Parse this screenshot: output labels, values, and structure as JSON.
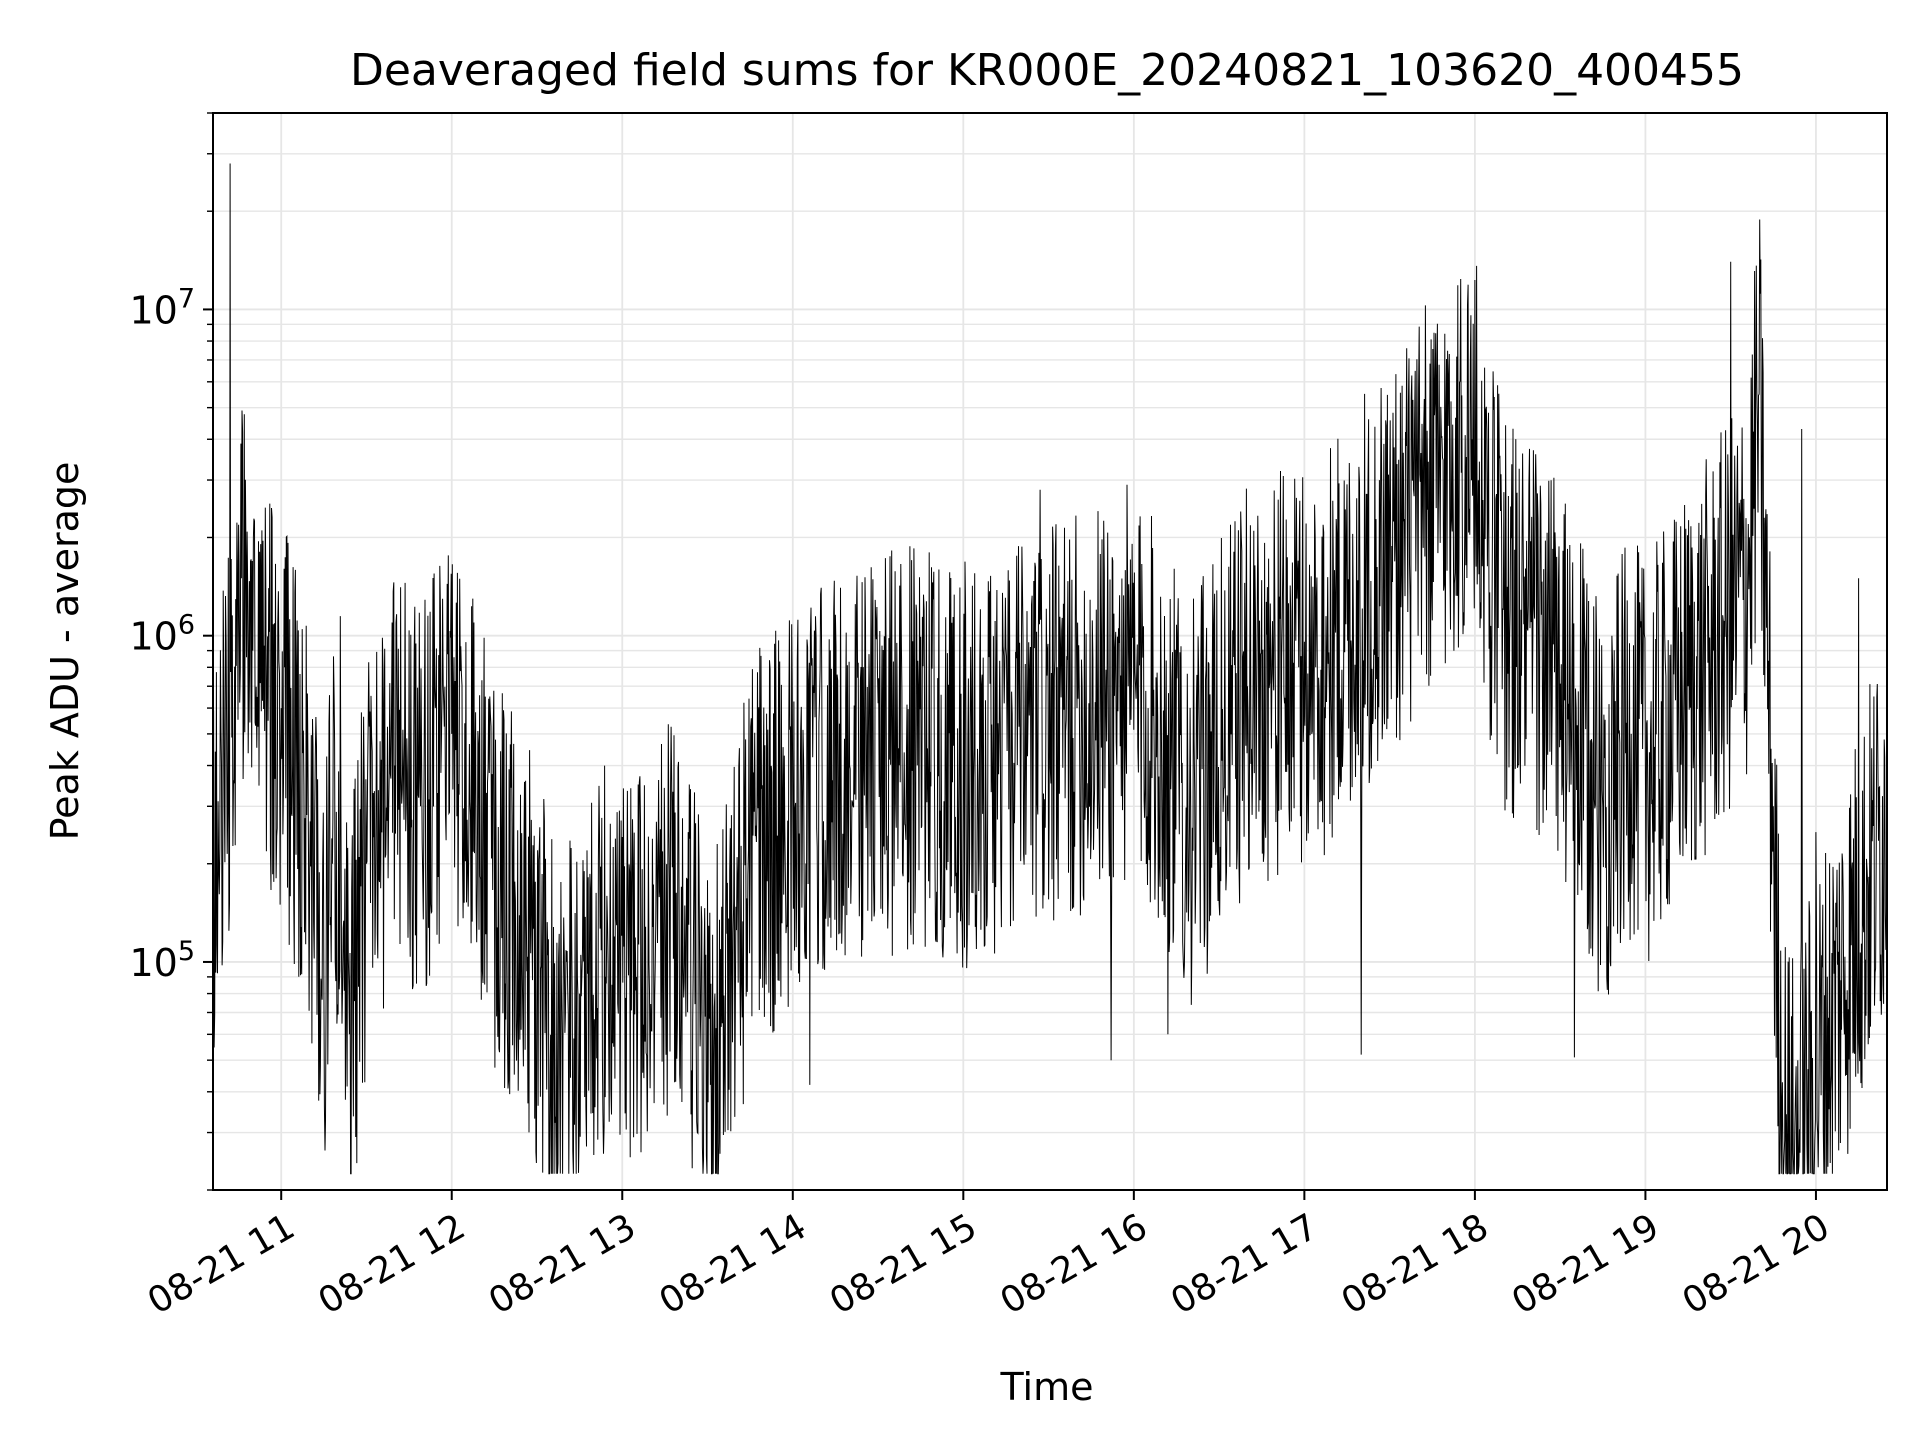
{
  "chart_data": {
    "type": "line",
    "title": "Deaveraged field sums for KR000E_20240821_103620_400455",
    "xlabel": "Time",
    "ylabel": "Peak ADU - average",
    "yscale": "log",
    "ylim": [
      20000,
      40000000
    ],
    "xlim": [
      "08-21 10:36",
      "08-21 20:25"
    ],
    "grid": true,
    "line_color": "#000000",
    "grid_color": "#e6e6e6",
    "x_ticks": [
      "08-21 11",
      "08-21 12",
      "08-21 13",
      "08-21 14",
      "08-21 15",
      "08-21 16",
      "08-21 17",
      "08-21 18",
      "08-21 19",
      "08-21 20"
    ],
    "y_ticks": [
      {
        "value": 100000,
        "base": "10",
        "exp": "5"
      },
      {
        "value": 1000000,
        "base": "10",
        "exp": "6"
      },
      {
        "value": 10000000,
        "base": "10",
        "exp": "7"
      }
    ],
    "series": [
      {
        "x": [
          "08-21 10:36",
          "08-21 10:39",
          "08-21 10:40",
          "08-21 10:42",
          "08-21 10:46",
          "08-21 10:50",
          "08-21 10:55",
          "08-21 11:00",
          "08-21 11:04",
          "08-21 11:08",
          "08-21 11:15",
          "08-21 11:18",
          "08-21 11:21",
          "08-21 11:24",
          "08-21 11:30",
          "08-21 11:40",
          "08-21 11:49",
          "08-21 12:00",
          "08-21 12:15",
          "08-21 12:30",
          "08-21 12:38",
          "08-21 12:45",
          "08-21 12:55",
          "08-21 13:05",
          "08-21 13:20",
          "08-21 13:31",
          "08-21 13:45",
          "08-21 14:00",
          "08-21 14:06",
          "08-21 14:20",
          "08-21 14:40",
          "08-21 14:48",
          "08-21 15:00",
          "08-21 15:20",
          "08-21 15:27",
          "08-21 15:40",
          "08-21 15:52",
          "08-21 15:58",
          "08-21 16:05",
          "08-21 16:12",
          "08-21 16:20",
          "08-21 16:40",
          "08-21 16:58",
          "08-21 17:04",
          "08-21 17:20",
          "08-21 17:40",
          "08-21 17:59",
          "08-21 18:10",
          "08-21 18:25",
          "08-21 18:35",
          "08-21 18:45",
          "08-21 18:55",
          "08-21 19:00",
          "08-21 19:15",
          "08-21 19:24",
          "08-21 19:30",
          "08-21 19:36",
          "08-21 19:40",
          "08-21 19:45",
          "08-21 19:48",
          "08-21 19:52",
          "08-21 19:55",
          "08-21 20:00",
          "08-21 20:10",
          "08-21 20:15",
          "08-21 20:25"
        ],
        "y": [
          170000,
          400000,
          300000,
          28000000,
          1500000,
          900000,
          700000,
          600000,
          400000,
          350000,
          100000,
          200000,
          300000,
          60000,
          200000,
          400000,
          300000,
          500000,
          200000,
          100000,
          45000,
          80000,
          100000,
          90000,
          150000,
          42000,
          200000,
          300000,
          42000,
          400000,
          450000,
          1800000,
          400000,
          450000,
          2800000,
          600000,
          50000,
          700000,
          600000,
          60000,
          300000,
          700000,
          800000,
          800000,
          52000,
          1000000,
          4000000,
          1200000,
          900000,
          51000,
          300000,
          500000,
          400000,
          700000,
          900000,
          14000000,
          1500000,
          5500000,
          300000,
          35000,
          26000,
          4300000,
          250000,
          60000,
          1500000,
          280000
        ]
      }
    ]
  }
}
